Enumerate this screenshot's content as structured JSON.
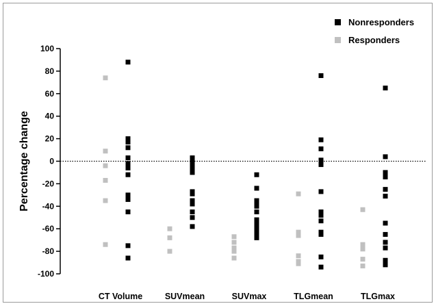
{
  "chart_data": {
    "type": "scatter",
    "ylabel": "Percentage change",
    "ylim": [
      -100,
      100
    ],
    "yticks": [
      100,
      80,
      60,
      40,
      20,
      0,
      -20,
      -40,
      -60,
      -80,
      -100
    ],
    "categories": [
      "CT Volume",
      "SUVmean",
      "SUVmax",
      "TLGmean",
      "TLGmax"
    ],
    "reference_line": 0,
    "legend_position": "top-right",
    "series": [
      {
        "name": "Nonresponders",
        "color": "#000000",
        "values": [
          [
            88,
            20,
            17,
            12,
            3,
            -2,
            -6,
            -12,
            -30,
            -34,
            -45,
            -75,
            -86
          ],
          [
            3,
            0,
            -3,
            -7,
            -10,
            -27,
            -29,
            -35,
            -38,
            -45,
            -50,
            -58
          ],
          [
            -12,
            -24,
            -35,
            -37,
            -40,
            -45,
            -52,
            -55,
            -58,
            -62,
            -66,
            -68
          ],
          [
            76,
            19,
            11,
            1,
            -3,
            -27,
            -45,
            -48,
            -53,
            -63,
            -65,
            -85,
            -94
          ],
          [
            65,
            4,
            -10,
            -14,
            -25,
            -31,
            -55,
            -65,
            -72,
            -77,
            -88,
            -92
          ]
        ]
      },
      {
        "name": "Responders",
        "color": "#c0c0c0",
        "values": [
          [
            74,
            9,
            -4,
            -17,
            -35,
            -74
          ],
          [
            -60,
            -68,
            -80
          ],
          [
            -67,
            -72,
            -77,
            -80,
            -86
          ],
          [
            -29,
            -63,
            -66,
            -84,
            -89,
            -91
          ],
          [
            -43,
            -74,
            -78,
            -87,
            -93
          ]
        ]
      }
    ]
  }
}
